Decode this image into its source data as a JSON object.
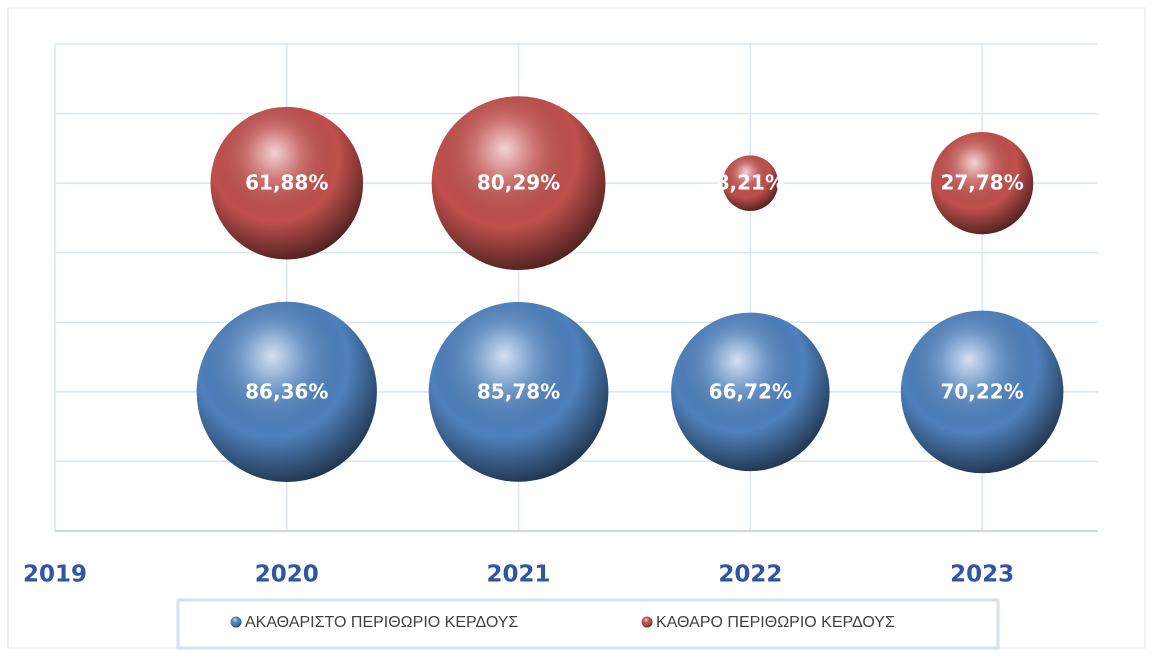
{
  "chart_data": {
    "type": "bubble",
    "xlim": [
      2019,
      2023.5
    ],
    "xticks": [
      2019,
      2020,
      2021,
      2022,
      2023
    ],
    "ylim": [
      0,
      3.5
    ],
    "yticks": [
      0,
      0.5,
      1,
      1.5,
      2,
      2.5,
      3,
      3.5
    ],
    "grid": true,
    "legend": "bottom",
    "series": [
      {
        "name": "ΑΚΑΘΑΡΙΣΤΟ ΠΕΡΙΘΩΡΙΟ ΚΕΡΔΟΥΣ",
        "color": "#4f81bd",
        "x": [
          2020,
          2021,
          2022,
          2023
        ],
        "values": [
          1,
          1,
          1,
          1
        ],
        "sizes": [
          86.36,
          85.78,
          66.72,
          70.22
        ],
        "value_labels": [
          "86,36%",
          "85,78%",
          "66,72%",
          "70,22%"
        ]
      },
      {
        "name": "ΚΑΘΑΡΟ ΠΕΡΙΘΩΡΙΟ ΚΕΡΔΟΥΣ",
        "color": "#c0504d",
        "x": [
          2020,
          2021,
          2022,
          2023
        ],
        "values": [
          2.5,
          2.5,
          2.5,
          2.5
        ],
        "sizes": [
          61.88,
          80.29,
          8.21,
          27.78
        ],
        "value_labels": [
          "61,88%",
          "80,29%",
          "8,21%",
          "27,78%"
        ]
      }
    ]
  }
}
